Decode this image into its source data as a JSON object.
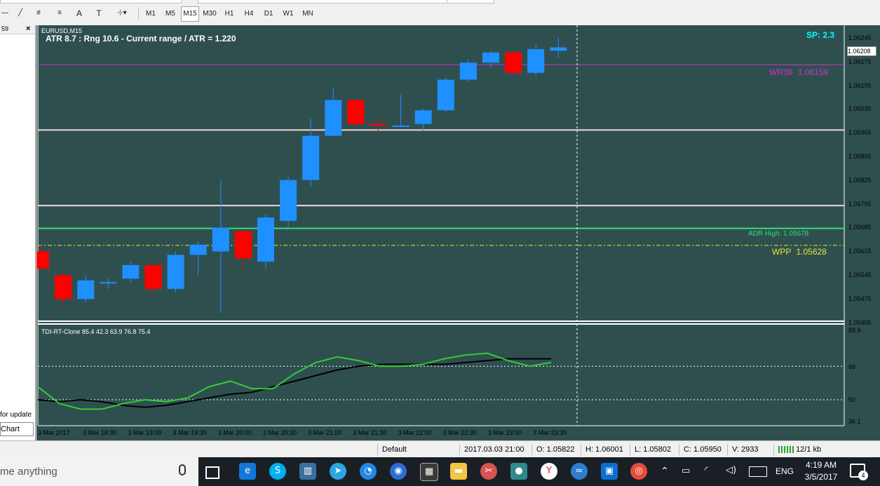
{
  "toolbar": {
    "draw_tools": [
      "—",
      "╱",
      "#",
      "≡",
      "A",
      "T",
      "⊹▾"
    ],
    "timeframes": [
      "M1",
      "M5",
      "M15",
      "M30",
      "H1",
      "H4",
      "D1",
      "W1",
      "MN"
    ],
    "active_timeframe": "M15"
  },
  "left_panel": {
    "header_text": "59",
    "close_icon": "×",
    "update_text": "for update",
    "chart_button": "Chart"
  },
  "chart": {
    "symbol": "EURUSD,M15",
    "atr_text": "ATR 8.7 : Rng 10.6 - Current range / ATR = 1.220",
    "spread_text": "SP: 2.3",
    "current_price": "1.06208",
    "wr38_label": "WR38",
    "wr38_value": "1.06159",
    "adr_high_text": "ADR High: 1.05678",
    "wpp_label": "WPP",
    "wpp_value": "1.05628",
    "price_labels": [
      "1.06245",
      "1.06175",
      "1.06105",
      "1.06035",
      "1.05965",
      "1.05895",
      "1.05825",
      "1.05755",
      "1.05685",
      "1.05615",
      "1.05545",
      "1.05475",
      "1.05405"
    ],
    "indicator_title": "TDI-RT-Clone 85.4 42.3 63.9 76.8 75.4",
    "indicator_levels": [
      "89.9",
      "68",
      "50",
      "36.1"
    ],
    "time_labels": [
      "3 Mar 2017",
      "3 Mar 18:30",
      "3 Mar 19:00",
      "3 Mar 19:30",
      "3 Mar 20:00",
      "3 Mar 20:30",
      "3 Mar 21:00",
      "3 Mar 21:30",
      "3 Mar 22:00",
      "3 Mar 22:30",
      "3 Mar 23:00",
      "3 Mar 23:30"
    ],
    "colors": {
      "background": "#2f4f4f",
      "bull": "#1e90ff",
      "bear": "#ff0000",
      "wr38": "#cc33cc",
      "adr": "#33dd77",
      "wpp": "#e6e633",
      "spread": "#00ffff"
    }
  },
  "chart_data": {
    "type": "candlestick",
    "candles": [
      {
        "o": 1.0561,
        "h": 1.0563,
        "l": 1.0555,
        "c": 1.0556
      },
      {
        "o": 1.0554,
        "h": 1.0555,
        "l": 1.0545,
        "c": 1.0547
      },
      {
        "o": 1.0547,
        "h": 1.0554,
        "l": 1.0546,
        "c": 1.05525
      },
      {
        "o": 1.0552,
        "h": 1.0553,
        "l": 1.055,
        "c": 1.0552
      },
      {
        "o": 1.0553,
        "h": 1.0558,
        "l": 1.0552,
        "c": 1.0557
      },
      {
        "o": 1.0557,
        "h": 1.0557,
        "l": 1.0549,
        "c": 1.055
      },
      {
        "o": 1.055,
        "h": 1.0561,
        "l": 1.0549,
        "c": 1.056
      },
      {
        "o": 1.056,
        "h": 1.0564,
        "l": 1.0554,
        "c": 1.0563
      },
      {
        "o": 1.0561,
        "h": 1.0582,
        "l": 1.0543,
        "c": 1.0568
      },
      {
        "o": 1.0567,
        "h": 1.0567,
        "l": 1.0556,
        "c": 1.0559
      },
      {
        "o": 1.0558,
        "h": 1.0572,
        "l": 1.0556,
        "c": 1.0571
      },
      {
        "o": 1.057,
        "h": 1.0583,
        "l": 1.0568,
        "c": 1.0582
      },
      {
        "o": 1.0582,
        "h": 1.06,
        "l": 1.058,
        "c": 1.0595
      },
      {
        "o": 1.0595,
        "h": 1.0609,
        "l": 1.0595,
        "c": 1.06055
      },
      {
        "o": 1.06055,
        "h": 1.0606,
        "l": 1.05975,
        "c": 1.05985
      },
      {
        "o": 1.05985,
        "h": 1.06,
        "l": 1.0596,
        "c": 1.0598
      },
      {
        "o": 1.0598,
        "h": 1.0607,
        "l": 1.05975,
        "c": 1.0598
      },
      {
        "o": 1.05985,
        "h": 1.0603,
        "l": 1.05965,
        "c": 1.06025
      },
      {
        "o": 1.06025,
        "h": 1.0612,
        "l": 1.0602,
        "c": 1.06115
      },
      {
        "o": 1.06115,
        "h": 1.06175,
        "l": 1.0611,
        "c": 1.06165
      },
      {
        "o": 1.06165,
        "h": 1.062,
        "l": 1.0615,
        "c": 1.06195
      },
      {
        "o": 1.06195,
        "h": 1.062,
        "l": 1.0613,
        "c": 1.06135
      },
      {
        "o": 1.06135,
        "h": 1.0622,
        "l": 1.06125,
        "c": 1.06205
      },
      {
        "o": 1.062,
        "h": 1.0624,
        "l": 1.0618,
        "c": 1.0621
      }
    ],
    "price_range": [
      1.05405,
      1.06275
    ],
    "levels": {
      "wr38": 1.06159,
      "line_1": 1.05967,
      "line_2": 1.05745,
      "adr_high": 1.05678,
      "wpp": 1.05628
    },
    "indicator": {
      "range": [
        36.1,
        89.9
      ],
      "green": [
        57,
        48,
        45,
        45,
        48,
        50,
        49,
        51,
        57,
        60,
        56,
        56,
        64,
        70,
        73,
        71,
        68,
        68,
        69,
        72,
        74,
        75,
        71,
        68,
        70
      ],
      "black": [
        50,
        49,
        50,
        49,
        47,
        46,
        47,
        49,
        51,
        53,
        54,
        57,
        60,
        63,
        66,
        68,
        69,
        69,
        69,
        69,
        70,
        71,
        72,
        72,
        72
      ]
    }
  },
  "status": {
    "profile": "Default",
    "datetime": "2017.03.03 21:00",
    "open": "O: 1.05822",
    "high": "H: 1.06001",
    "low": "L: 1.05802",
    "close": "C: 1.05950",
    "volume": "V: 2933",
    "traffic": "12/1 kb"
  },
  "taskbar": {
    "search_text": "me anything",
    "lang": "ENG",
    "time": "4:19 AM",
    "date": "3/5/2017",
    "notifications": "4",
    "icons": [
      "mic-icon",
      "task-view-icon",
      "edge-icon",
      "skype-icon",
      "metatrader-icon",
      "telegram-icon",
      "app-icon",
      "app-icon",
      "calculator-icon",
      "explorer-icon",
      "snipping-icon",
      "video-icon",
      "yandex-icon",
      "app-icon",
      "app-icon",
      "chrome-icon"
    ]
  }
}
